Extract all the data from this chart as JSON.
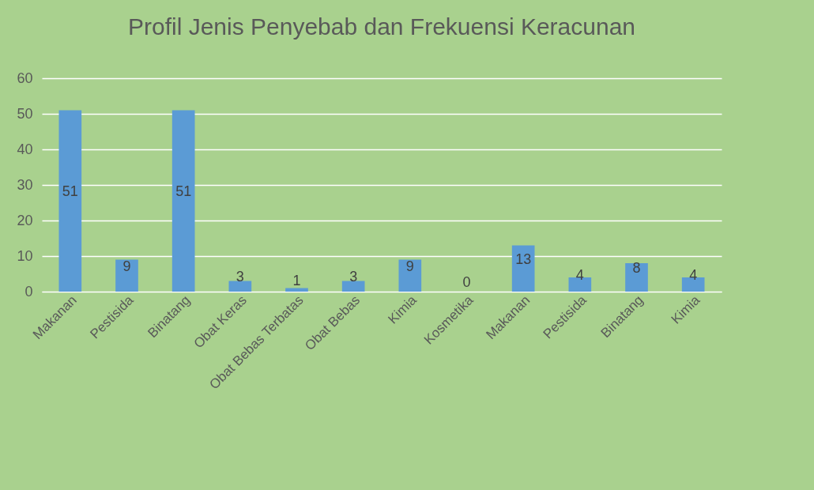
{
  "chart_data": {
    "type": "bar",
    "title": "Profil Jenis Penyebab dan Frekuensi Keracunan",
    "categories": [
      "Makanan",
      "Pestisida",
      "Binatang",
      "Obat Keras",
      "Obat Bebas Terbatas",
      "Obat Bebas",
      "Kimia",
      "Kosmetika",
      "Makanan",
      "Pestisida",
      "Binatang",
      "Kimia"
    ],
    "values": [
      51,
      9,
      51,
      3,
      1,
      3,
      9,
      0,
      13,
      4,
      8,
      4
    ],
    "color": "#5b9bd5",
    "ylim": [
      0,
      60
    ],
    "yticks": [
      0,
      10,
      20,
      30,
      40,
      50,
      60
    ],
    "grid": "y",
    "data_labels": true
  }
}
